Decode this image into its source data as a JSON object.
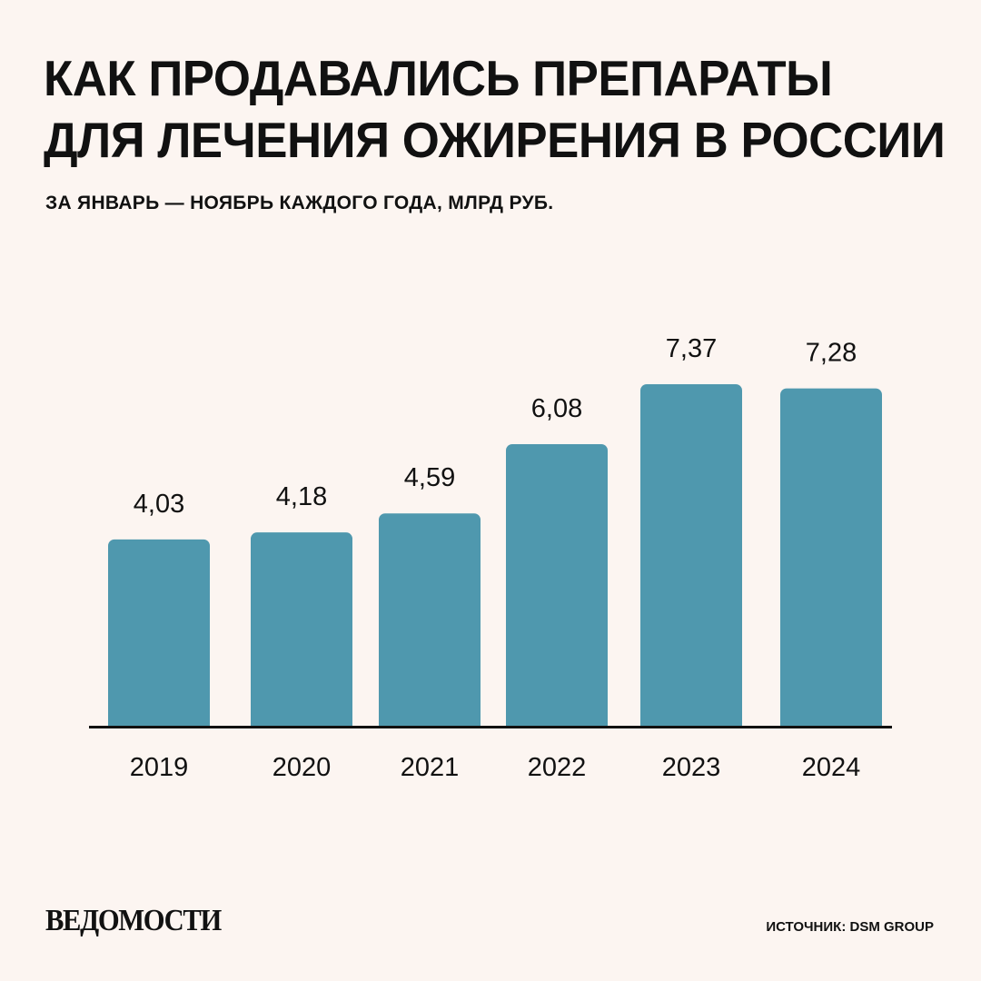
{
  "header": {
    "title_lines": [
      "КАК ПРОДАВАЛИСЬ ПРЕПАРАТЫ",
      "ДЛЯ ЛЕЧЕНИЯ ОЖИРЕНИЯ В РОССИИ"
    ],
    "subtitle": "ЗА ЯНВАРЬ — НОЯБРЬ КАЖДОГО ГОДА, МЛРД РУБ."
  },
  "chart_data": {
    "type": "bar",
    "title": "КАК ПРОДАВАЛИСЬ ПРЕПАРАТЫ ДЛЯ ЛЕЧЕНИЯ ОЖИРЕНИЯ В РОССИИ",
    "subtitle": "ЗА ЯНВАРЬ — НОЯБРЬ КАЖДОГО ГОДА, МЛРД РУБ.",
    "categories": [
      "2019",
      "2020",
      "2021",
      "2022",
      "2023",
      "2024"
    ],
    "values": [
      4.03,
      4.18,
      4.59,
      6.08,
      7.37,
      7.28
    ],
    "value_labels": [
      "4,03",
      "4,18",
      "4,59",
      "6,08",
      "7,37",
      "7,28"
    ],
    "xlabel": "",
    "ylabel": "",
    "ylim": [
      0,
      7.37
    ],
    "grid": false,
    "legend": "none",
    "bar_color": "#4f98ae",
    "axis_color": "#111111"
  },
  "footer": {
    "logo": "ВЕДОМОСТИ",
    "source": "ИСТОЧНИК: DSM GROUP"
  },
  "colors": {
    "background": "#fcf5f1",
    "text": "#111111",
    "bar": "#4f98ae"
  }
}
